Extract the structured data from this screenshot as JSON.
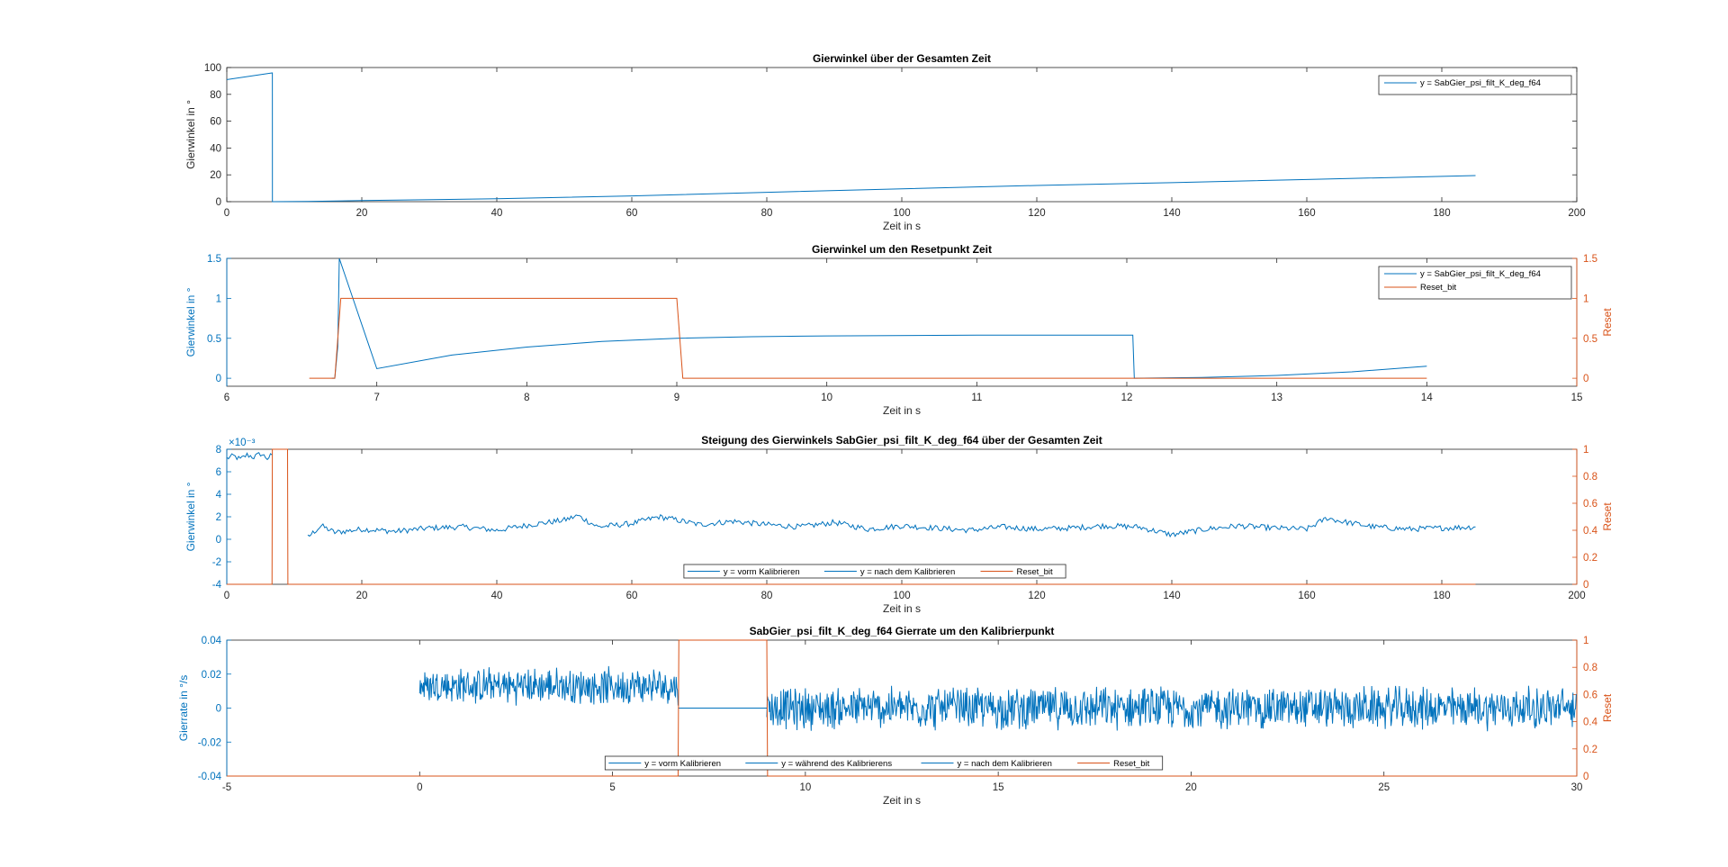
{
  "colors": {
    "blue": "#0072BD",
    "orange": "#D95319",
    "axis": "#262626",
    "right_axis_orange": "#D95319"
  },
  "chart_data": [
    {
      "type": "line",
      "title": "Gierwinkel über der Gesamten Zeit",
      "xlabel": "Zeit in s",
      "ylabel": "Gierwinkel in °",
      "xlim": [
        0,
        200
      ],
      "ylim": [
        0,
        100
      ],
      "xticks": [
        "0",
        "20",
        "40",
        "60",
        "80",
        "100",
        "120",
        "140",
        "160",
        "180",
        "200"
      ],
      "yticks": [
        "0",
        "20",
        "40",
        "60",
        "80",
        "100"
      ],
      "legend": {
        "position": "top-right",
        "entries": [
          "y = SabGier_psi_filt_K_deg_f64"
        ]
      },
      "series": [
        {
          "name": "y = SabGier_psi_filt_K_deg_f64",
          "axis": "left",
          "color": "#0072BD",
          "x": [
            0,
            6.7,
            6.75,
            6.76,
            12,
            20,
            40,
            60,
            80,
            100,
            120,
            140,
            160,
            185
          ],
          "y": [
            91,
            96,
            96,
            0,
            0.2,
            0.8,
            2.2,
            4.3,
            7.0,
            9.6,
            12.1,
            14.2,
            16.5,
            19.5
          ]
        }
      ]
    },
    {
      "type": "line",
      "title": "Gierwinkel um den Resetpunkt Zeit",
      "xlabel": "Zeit in s",
      "ylabel": "Gierwinkel in °",
      "y2label": "Reset",
      "xlim": [
        6,
        15
      ],
      "ylim": [
        -0.1,
        1.5
      ],
      "y2lim": [
        -0.1,
        1.5
      ],
      "xticks": [
        "6",
        "7",
        "8",
        "9",
        "10",
        "11",
        "12",
        "13",
        "14",
        "15"
      ],
      "yticks": [
        "0",
        "0.5",
        "1",
        "1.5"
      ],
      "y2ticks": [
        "0",
        "0.5",
        "1",
        "1.5"
      ],
      "legend": {
        "position": "top-right",
        "entries": [
          "y = SabGier_psi_filt_K_deg_f64",
          "Reset_bit"
        ]
      },
      "series": [
        {
          "name": "y = SabGier_psi_filt_K_deg_f64",
          "axis": "left",
          "color": "#0072BD",
          "x": [
            6.7,
            6.72,
            6.74,
            6.75,
            7.0,
            7.5,
            8.0,
            8.5,
            9.0,
            9.5,
            10,
            11,
            12.0,
            12.04,
            12.05,
            12.5,
            13,
            13.5,
            14
          ],
          "y": [
            0,
            0,
            0.4,
            1.5,
            0.12,
            0.29,
            0.39,
            0.46,
            0.5,
            0.52,
            0.53,
            0.54,
            0.54,
            0.54,
            0.0,
            0.01,
            0.035,
            0.08,
            0.15
          ]
        },
        {
          "name": "Reset_bit",
          "axis": "right",
          "color": "#D95319",
          "x": [
            6.55,
            6.72,
            6.76,
            9.0,
            9.04,
            14.0
          ],
          "y": [
            0,
            0,
            1,
            1,
            0,
            0
          ]
        }
      ]
    },
    {
      "type": "line",
      "title": "Steigung des Gierwinkels SabGier_psi_filt_K_deg_f64 über der Gesamten Zeit",
      "xlabel": "Zeit in s",
      "ylabel": "Gierwinkel in °",
      "y2label": "Reset",
      "yexponent": "×10⁻³",
      "xlim": [
        0,
        200
      ],
      "ylim": [
        -0.004,
        0.008
      ],
      "y2lim": [
        0,
        1
      ],
      "xticks": [
        "0",
        "20",
        "40",
        "60",
        "80",
        "100",
        "120",
        "140",
        "160",
        "180",
        "200"
      ],
      "yticks": [
        "-4",
        "-2",
        "0",
        "2",
        "4",
        "6",
        "8"
      ],
      "y2ticks": [
        "0",
        "0.2",
        "0.4",
        "0.6",
        "0.8",
        "1"
      ],
      "legend": {
        "position": "bottom-center",
        "entries": [
          "y = vorm Kalibrieren",
          "y = nach dem Kalibrieren",
          "Reset_bit"
        ]
      },
      "series": [
        {
          "name": "y = vorm Kalibrieren",
          "axis": "left",
          "color": "#0072BD",
          "x": [
            0,
            1,
            2,
            3,
            4,
            5,
            6,
            6.7
          ],
          "y": [
            0.0072,
            0.0074,
            0.0071,
            0.0075,
            0.0073,
            0.0076,
            0.0072,
            0.0075
          ]
        },
        {
          "name": "y = nach dem Kalibrieren",
          "axis": "left",
          "color": "#0072BD",
          "x": [
            12,
            14,
            16,
            20,
            25,
            30,
            35,
            40,
            45,
            50,
            52,
            55,
            60,
            64,
            66,
            70,
            75,
            80,
            85,
            90,
            95,
            100,
            105,
            110,
            115,
            120,
            125,
            130,
            135,
            140,
            145,
            150,
            155,
            160,
            163,
            165,
            170,
            175,
            180,
            185
          ],
          "y": [
            0.0002,
            0.0012,
            0.0006,
            0.0009,
            0.0007,
            0.001,
            0.0011,
            0.0008,
            0.0013,
            0.0017,
            0.0021,
            0.0011,
            0.0014,
            0.002,
            0.0018,
            0.0013,
            0.0016,
            0.0013,
            0.0011,
            0.0015,
            0.0009,
            0.0012,
            0.001,
            0.0008,
            0.0011,
            0.0009,
            0.001,
            0.0012,
            0.0011,
            0.0004,
            0.0009,
            0.0012,
            0.001,
            0.0009,
            0.0019,
            0.0016,
            0.0011,
            0.0009,
            0.001,
            0.0011
          ]
        },
        {
          "name": "Reset_bit",
          "axis": "right",
          "color": "#D95319",
          "x": [
            0,
            6.7,
            6.75,
            9.0,
            9.05,
            185
          ],
          "y": [
            0,
            0,
            1,
            1,
            0,
            0
          ]
        }
      ]
    },
    {
      "type": "line",
      "title": "SabGier_psi_filt_K_deg_f64 Gierrate um den Kalibrierpunkt",
      "xlabel": "Zeit in s",
      "ylabel": "Gierrate in °/s",
      "y2label": "Reset",
      "xlim": [
        -5,
        30
      ],
      "ylim": [
        -0.04,
        0.04
      ],
      "y2lim": [
        0,
        1
      ],
      "xticks": [
        "-5",
        "0",
        "5",
        "10",
        "15",
        "20",
        "25",
        "30"
      ],
      "yticks": [
        "-0.04",
        "-0.02",
        "0",
        "0.02",
        "0.04"
      ],
      "y2ticks": [
        "0",
        "0.2",
        "0.4",
        "0.6",
        "0.8",
        "1"
      ],
      "legend": {
        "position": "bottom-center",
        "entries": [
          "y = vorm Kalibrieren",
          "y = während des Kalibrierens",
          "y = nach dem Kalibrieren",
          "Reset_bit"
        ]
      },
      "series": [
        {
          "name": "y = vorm Kalibrieren",
          "axis": "left",
          "color": "#0072BD",
          "noise": {
            "x_start": 0,
            "x_end": 6.7,
            "mean": 0.013,
            "amplitude": 0.012
          }
        },
        {
          "name": "y = während des Kalibrierens",
          "axis": "left",
          "color": "#0072BD",
          "x": [
            6.7,
            9.0
          ],
          "y": [
            0,
            0
          ]
        },
        {
          "name": "y = nach dem Kalibrieren",
          "axis": "left",
          "color": "#0072BD",
          "noise": {
            "x_start": 9.0,
            "x_end": 30,
            "mean": 0.0,
            "amplitude": 0.014
          }
        },
        {
          "name": "Reset_bit",
          "axis": "right",
          "color": "#D95319",
          "x": [
            -5,
            6.7,
            6.72,
            9.0,
            9.02,
            30
          ],
          "y": [
            0,
            0,
            1,
            1,
            0,
            0
          ]
        }
      ]
    }
  ]
}
